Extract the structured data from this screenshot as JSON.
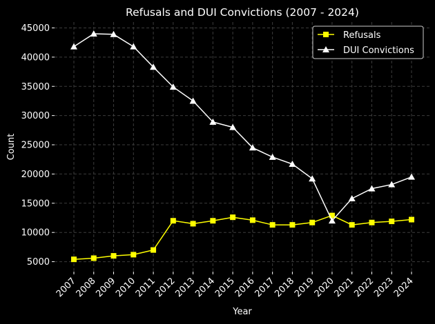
{
  "chart_data": {
    "type": "line",
    "title": "Refusals and DUI Convictions (2007 - 2024)",
    "xlabel": "Year",
    "ylabel": "Count",
    "categories": [
      "2007",
      "2008",
      "2009",
      "2010",
      "2011",
      "2012",
      "2013",
      "2014",
      "2015",
      "2016",
      "2017",
      "2018",
      "2019",
      "2020",
      "2021",
      "2022",
      "2023",
      "2024"
    ],
    "ylim": [
      3300,
      46000
    ],
    "yticks": [
      "5000",
      "10000",
      "15000",
      "20000",
      "25000",
      "30000",
      "35000",
      "40000",
      "45000"
    ],
    "grid": true,
    "legend_position": "top-right",
    "background": "#000000",
    "series": [
      {
        "name": "Refusals",
        "color": "#ffff00",
        "marker": "square",
        "values": [
          5400,
          5600,
          6000,
          6200,
          7000,
          12000,
          11500,
          12000,
          12600,
          12100,
          11300,
          11300,
          11700,
          12900,
          11300,
          11700,
          11900,
          12200
        ]
      },
      {
        "name": "DUI Convictions",
        "color": "#ffffff",
        "marker": "triangle",
        "values": [
          41800,
          44000,
          43900,
          41800,
          38300,
          34900,
          32500,
          28900,
          28000,
          24500,
          22900,
          21700,
          19200,
          12000,
          15800,
          17500,
          18200,
          19500
        ]
      }
    ]
  }
}
